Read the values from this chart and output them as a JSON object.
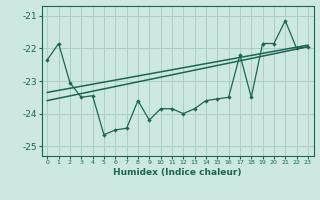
{
  "xlabel": "Humidex (Indice chaleur)",
  "xlim": [
    -0.5,
    23.5
  ],
  "ylim": [
    -25.3,
    -20.7
  ],
  "yticks": [
    -25,
    -24,
    -23,
    -22,
    -21
  ],
  "xticks": [
    0,
    1,
    2,
    3,
    4,
    5,
    6,
    7,
    8,
    9,
    10,
    11,
    12,
    13,
    14,
    15,
    16,
    17,
    18,
    19,
    20,
    21,
    22,
    23
  ],
  "bg_color": "#cce8e0",
  "line_color": "#1a6655",
  "grid_color": "#aacfc7",
  "line1_x": [
    0,
    1,
    2,
    3,
    4,
    5,
    6,
    7,
    8,
    9,
    10,
    11,
    12,
    13,
    14,
    15,
    16,
    17,
    18,
    19,
    20,
    21,
    22,
    23
  ],
  "line1_y": [
    -22.35,
    -21.85,
    -23.05,
    -23.5,
    -23.45,
    -24.65,
    -24.5,
    -24.45,
    -23.6,
    -24.2,
    -23.85,
    -23.85,
    -24.0,
    -23.85,
    -23.6,
    -23.55,
    -23.5,
    -22.2,
    -23.5,
    -21.85,
    -21.85,
    -21.15,
    -22.0,
    -21.95
  ],
  "line2_x": [
    0,
    23
  ],
  "line2_y": [
    -23.35,
    -21.9
  ],
  "line3_x": [
    0,
    23
  ],
  "line3_y": [
    -23.6,
    -21.95
  ]
}
